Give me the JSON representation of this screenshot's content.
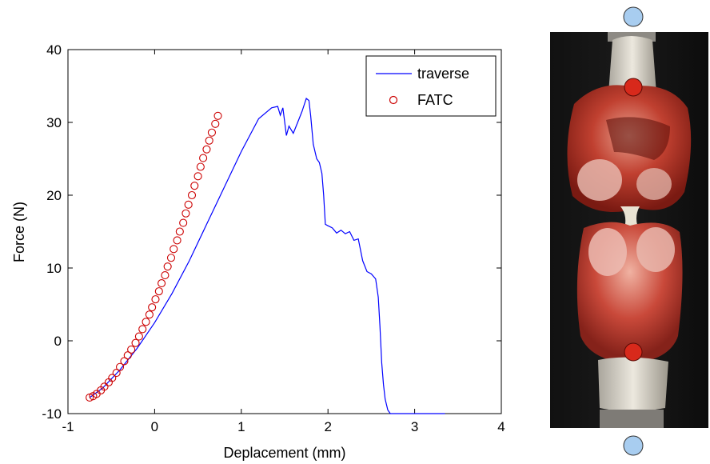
{
  "chart_data": {
    "type": "line",
    "xlabel": "Deplacement (mm)",
    "ylabel": "Force (N)",
    "xlim": [
      -1,
      4
    ],
    "ylim": [
      -10,
      40
    ],
    "xticks": [
      -1,
      0,
      1,
      2,
      3,
      4
    ],
    "yticks": [
      -10,
      0,
      10,
      20,
      30,
      40
    ],
    "grid": false,
    "legend_position": "top-right",
    "series": [
      {
        "name": "traverse",
        "style": "line",
        "color": "#0000ff",
        "x": [
          -0.75,
          -0.6,
          -0.4,
          -0.2,
          0.0,
          0.2,
          0.4,
          0.6,
          0.8,
          1.0,
          1.2,
          1.35,
          1.42,
          1.45,
          1.48,
          1.52,
          1.55,
          1.6,
          1.65,
          1.7,
          1.75,
          1.78,
          1.8,
          1.83,
          1.87,
          1.9,
          1.93,
          1.95,
          1.97,
          2.0,
          2.05,
          2.1,
          2.15,
          2.2,
          2.25,
          2.3,
          2.35,
          2.4,
          2.45,
          2.5,
          2.55,
          2.58,
          2.6,
          2.62,
          2.64,
          2.66,
          2.69,
          2.72,
          3.35
        ],
        "y": [
          -7.8,
          -6.5,
          -4.0,
          -1.0,
          2.5,
          6.5,
          11.0,
          16.0,
          21.0,
          26.0,
          30.5,
          32.0,
          32.2,
          31.0,
          32.0,
          28.2,
          29.5,
          28.5,
          30.0,
          31.5,
          33.3,
          33.0,
          31.0,
          27.0,
          25.0,
          24.5,
          23.0,
          20.0,
          16.0,
          15.8,
          15.5,
          14.8,
          15.2,
          14.7,
          15.0,
          13.8,
          14.0,
          11.0,
          9.5,
          9.2,
          8.5,
          6.0,
          2.0,
          -3.0,
          -6.0,
          -8.0,
          -9.5,
          -10.0,
          -10.0
        ]
      },
      {
        "name": "FATC",
        "style": "markers",
        "color": "#cc0000",
        "x": [
          -0.75,
          -0.71,
          -0.67,
          -0.62,
          -0.58,
          -0.53,
          -0.49,
          -0.44,
          -0.4,
          -0.35,
          -0.31,
          -0.27,
          -0.22,
          -0.18,
          -0.14,
          -0.1,
          -0.06,
          -0.03,
          0.01,
          0.05,
          0.08,
          0.12,
          0.15,
          0.19,
          0.22,
          0.26,
          0.29,
          0.33,
          0.36,
          0.39,
          0.43,
          0.46,
          0.5,
          0.53,
          0.56,
          0.6,
          0.63,
          0.66,
          0.7,
          0.73
        ],
        "y": [
          -7.8,
          -7.6,
          -7.3,
          -6.8,
          -6.3,
          -5.7,
          -5.1,
          -4.4,
          -3.6,
          -2.8,
          -2.0,
          -1.2,
          -0.3,
          0.6,
          1.6,
          2.6,
          3.6,
          4.6,
          5.7,
          6.8,
          7.9,
          9.0,
          10.2,
          11.4,
          12.6,
          13.8,
          15.0,
          16.2,
          17.5,
          18.7,
          20.0,
          21.3,
          22.6,
          23.9,
          25.1,
          26.3,
          27.5,
          28.6,
          29.8,
          30.9
        ]
      }
    ]
  },
  "photo": {
    "description_icon": "specimen-photo",
    "marker_top_color": "#a8cdf0",
    "marker_red_color": "#d8291b",
    "marker_bottom_color": "#a8cdf0"
  }
}
